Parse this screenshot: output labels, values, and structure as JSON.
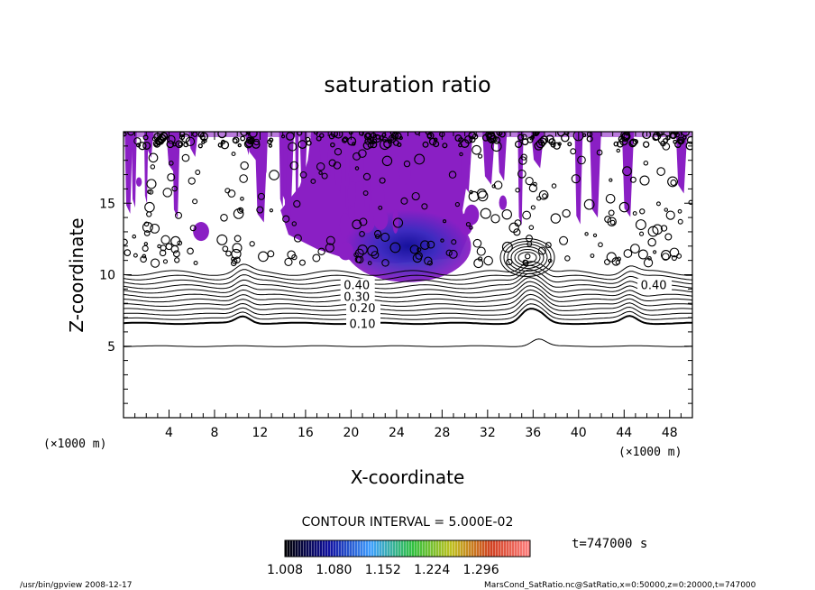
{
  "chart_data": {
    "type": "heatmap",
    "title": "saturation ratio",
    "xlabel": "X-coordinate",
    "ylabel": "Z-coordinate",
    "x_unit_left": "(×1000 m)",
    "x_unit_right": "(×1000 m)",
    "xlim": [
      0,
      50
    ],
    "ylim": [
      0,
      20
    ],
    "x_ticks": [
      "4",
      "8",
      "12",
      "16",
      "20",
      "24",
      "28",
      "32",
      "36",
      "40",
      "44",
      "48"
    ],
    "x_tick_values": [
      4,
      8,
      12,
      16,
      20,
      24,
      28,
      32,
      36,
      40,
      44,
      48
    ],
    "y_ticks": [
      "5",
      "10",
      "15"
    ],
    "y_tick_values": [
      5,
      10,
      15
    ],
    "contour_levels": [
      {
        "label": "0.10",
        "value": 0.1,
        "z": 6.6
      },
      {
        "label": "0.20",
        "value": 0.2,
        "z": 7.7
      },
      {
        "label": "0.30",
        "value": 0.3,
        "z": 8.5
      },
      {
        "label": "0.40",
        "value": 0.4,
        "z": 9.3
      }
    ],
    "base_contour_z": 5.0,
    "contour_interval_text": "CONTOUR INTERVAL = 5.000E-02",
    "colorbar": {
      "min": 1.008,
      "max": 1.368,
      "tick_labels": [
        "1.008",
        "1.080",
        "1.152",
        "1.224",
        "1.296"
      ],
      "tick_values": [
        1.008,
        1.08,
        1.152,
        1.224,
        1.296
      ]
    },
    "supersaturated_region": {
      "x_range": [
        0,
        50
      ],
      "z_range": [
        10.5,
        20
      ],
      "max_value_location": {
        "x": 25,
        "z": 12
      },
      "approx_max": 1.08
    },
    "time_label": "t=747000 s"
  },
  "footer": {
    "left": "/usr/bin/gpview   2008-12-17",
    "right": "MarsCond_SatRatio.nc@SatRatio,x=0:50000,z=0:20000,t=747000"
  },
  "colors": {
    "purple": "#8a1fc4",
    "deep_blue": "#1a1aa8",
    "contour": "#000000"
  }
}
